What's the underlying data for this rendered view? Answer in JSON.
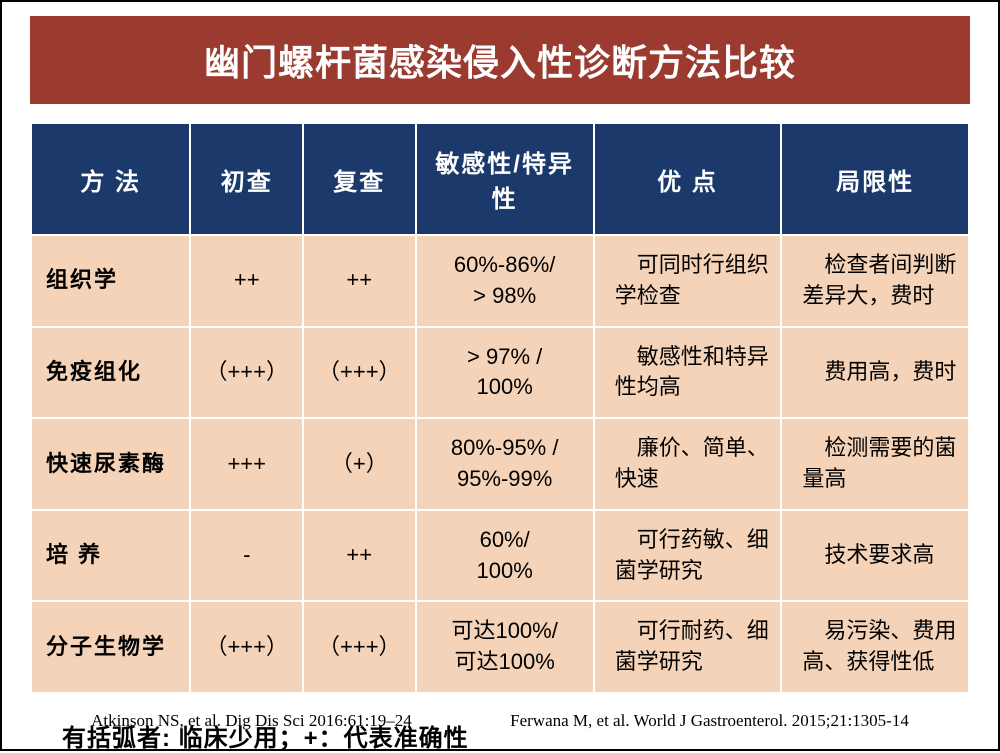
{
  "title": "幽门螺杆菌感染侵入性诊断方法比较",
  "columns": [
    "方 法",
    "初查",
    "复查",
    "敏感性/特异性",
    "优 点",
    "局限性"
  ],
  "rows": [
    {
      "method": "组织学",
      "initial": "++",
      "recheck": "++",
      "sens": "60%-86%/\n> 98%",
      "pros": "可同时行组织学检查",
      "cons": "检查者间判断差异大，费时"
    },
    {
      "method": "免疫组化",
      "initial": "（+++）",
      "recheck": "（+++）",
      "sens": "> 97% /\n100%",
      "pros": "敏感性和特异性均高",
      "cons": "费用高，费时"
    },
    {
      "method": "快速尿素酶",
      "initial": "+++",
      "recheck": "（+）",
      "sens": "80%-95% /\n95%-99%",
      "pros": "廉价、简单、快速",
      "cons": "检测需要的菌量高"
    },
    {
      "method": "培 养",
      "initial": "-",
      "recheck": "++",
      "sens": "60%/\n100%",
      "pros": "可行药敏、细菌学研究",
      "cons": "技术要求高"
    },
    {
      "method": "分子生物学",
      "initial": "（+++）",
      "recheck": "（+++）",
      "sens": "可达100%/\n可达100%",
      "pros": "可行耐药、细菌学研究",
      "cons": "易污染、费用高、获得性低"
    }
  ],
  "note": "有括弧者: 临床少用；+：代表准确性",
  "refs": [
    "Atkinson NS, et al. Dig Dis Sci 2016:61:19–24",
    "Ferwana M, et al. World J Gastroenterol. 2015;21:1305-14"
  ],
  "colors": {
    "title_bg": "#9b3a2f",
    "header_bg": "#1b3a6b",
    "cell_bg": "#f5d3b8"
  }
}
